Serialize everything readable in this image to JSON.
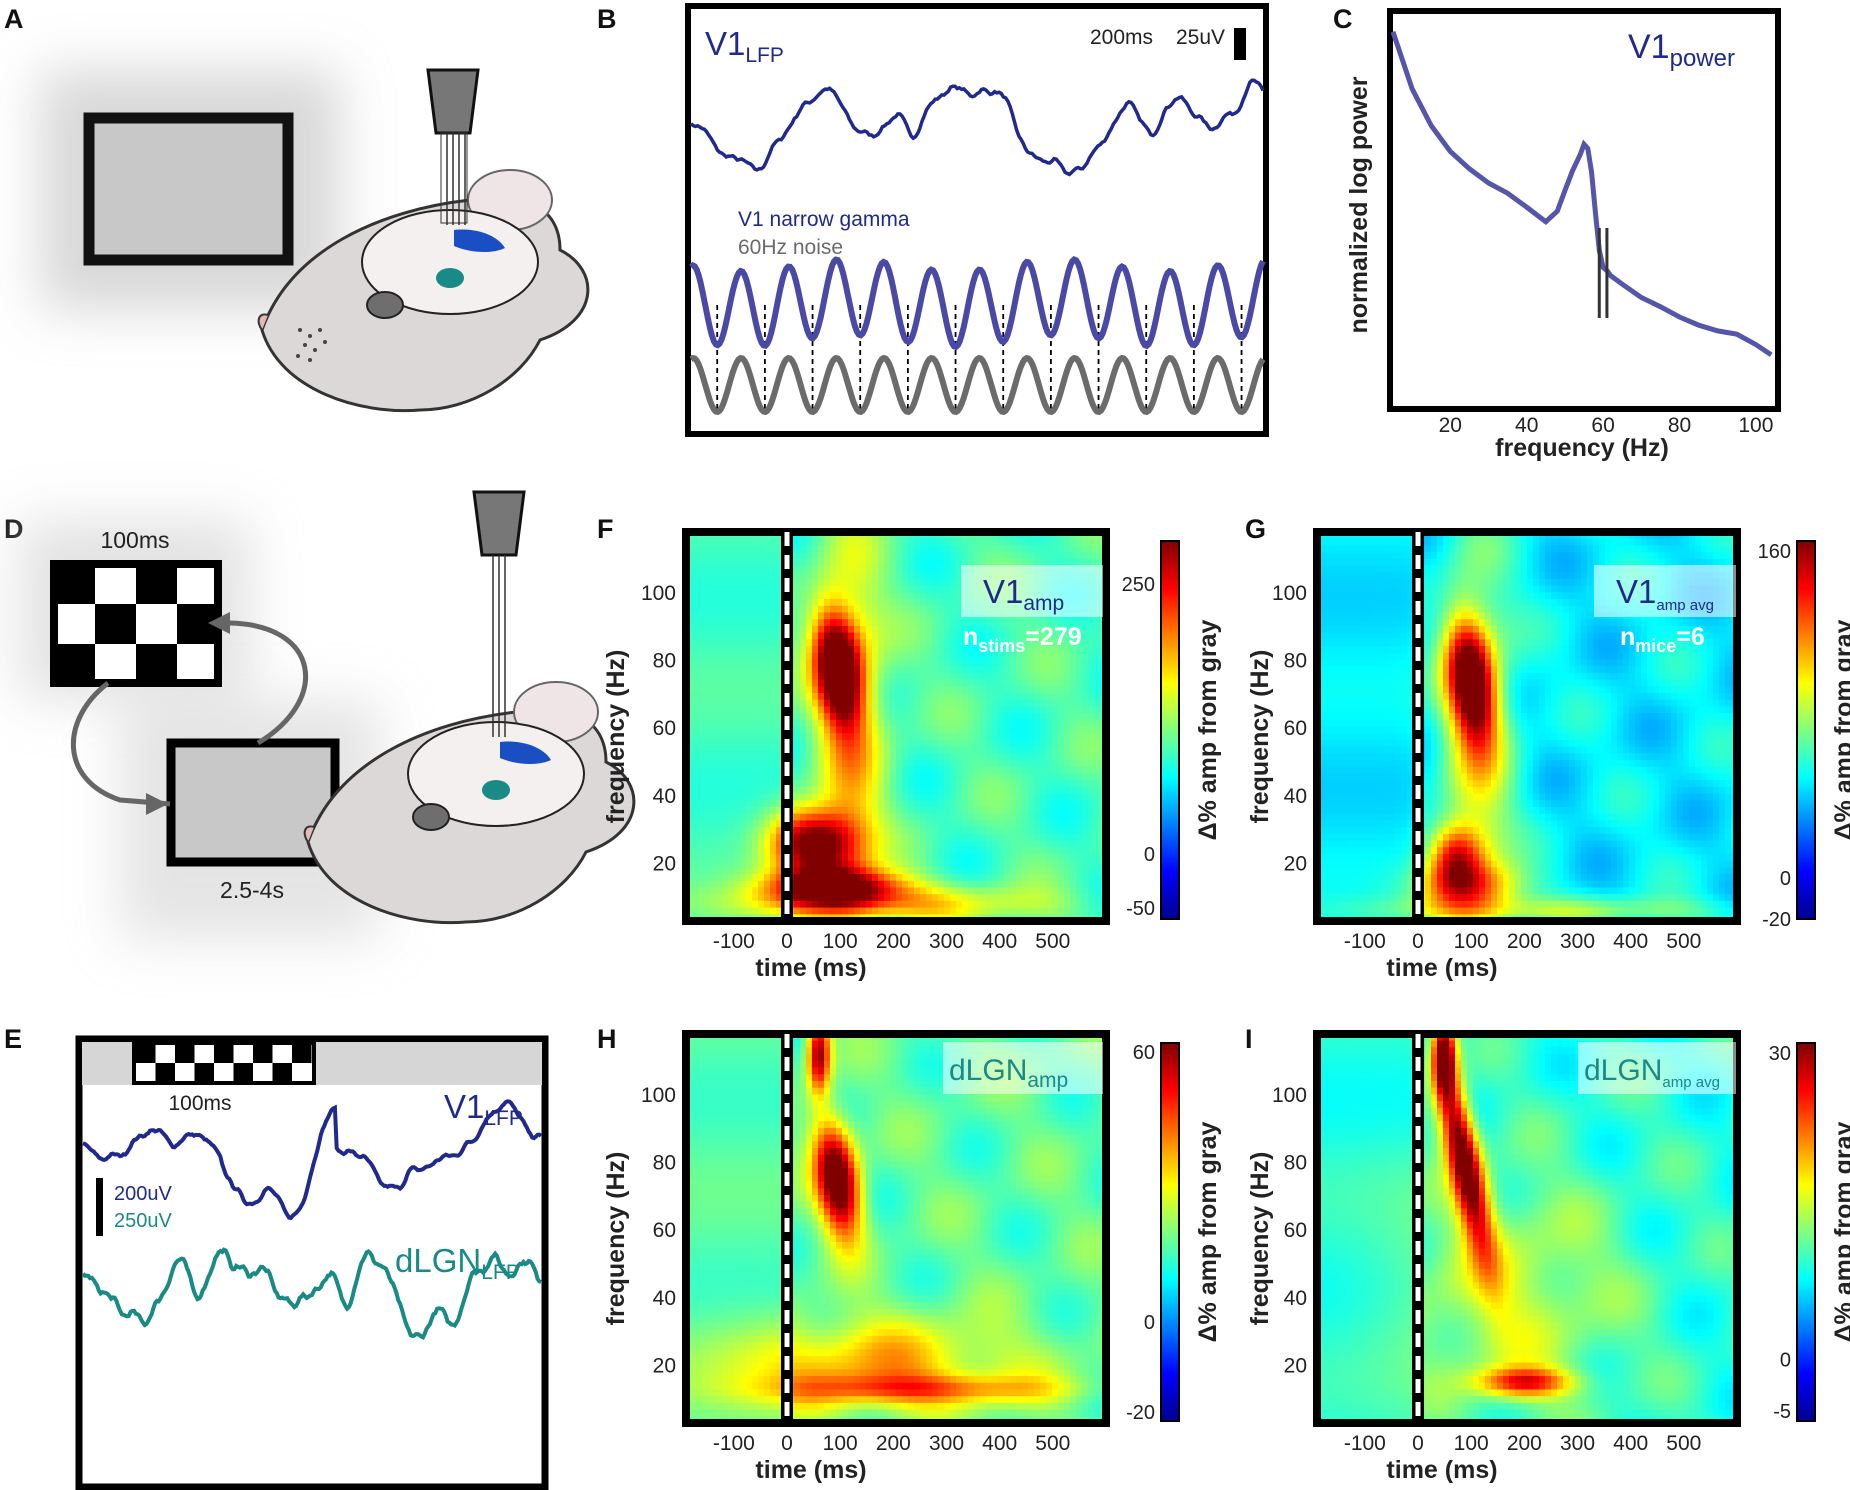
{
  "panels": {
    "A": "A",
    "B": "B",
    "C": "C",
    "D": "D",
    "E": "E",
    "F": "F",
    "G": "G",
    "H": "H",
    "I": "I"
  },
  "panel_b": {
    "title_main": "V1",
    "title_sub": "LFP",
    "scale_time": "200ms",
    "scale_volt": "25uV",
    "legend_gamma": "V1 narrow gamma",
    "legend_noise": "60Hz noise"
  },
  "panel_c": {
    "title_main": "V1",
    "title_sub": "power",
    "xlabel": "frequency (Hz)",
    "ylabel": "normalized log power",
    "xticks": [
      "20",
      "40",
      "60",
      "80",
      "100"
    ]
  },
  "panel_d": {
    "flash_duration": "100ms",
    "gray_duration": "2.5-4s"
  },
  "panel_e": {
    "flash_duration": "100ms",
    "v1_main": "V1",
    "v1_sub": "LFP",
    "dlgn_main": "dLGN",
    "dlgn_sub": "LFP",
    "scale_v1": "200uV",
    "scale_dlgn": "250uV"
  },
  "heatmap_axes": {
    "xlabel": "time (ms)",
    "ylabel": "frequency (Hz)",
    "cbar_label": "Δ% amp from gray",
    "xticks": [
      "-100",
      "0",
      "100",
      "200",
      "300",
      "400",
      "500"
    ],
    "yticks": [
      "20",
      "40",
      "60",
      "80",
      "100"
    ]
  },
  "panel_f": {
    "title_main": "V1",
    "title_sub": "amp",
    "n_main": "n",
    "n_sub": "stims",
    "n_value": "=279",
    "cbar_ticks": [
      "250",
      "0",
      "-50"
    ]
  },
  "panel_g": {
    "title_main": "V1",
    "title_sub": "amp avg",
    "n_main": "n",
    "n_sub": "mice",
    "n_value": "=6",
    "cbar_ticks": [
      "160",
      "0",
      "-20"
    ]
  },
  "panel_h": {
    "title_main": "dLGN",
    "title_sub": "amp",
    "cbar_ticks": [
      "60",
      "0",
      "-20"
    ]
  },
  "panel_i": {
    "title_main": "dLGN",
    "title_sub": "amp avg",
    "cbar_ticks": [
      "30",
      "0",
      "-5"
    ]
  },
  "colors": {
    "navy": "#1f2a8c",
    "gamma": "#4a4aa6",
    "teal": "#1a8a86",
    "noise": "#6b6b6b"
  },
  "chart_data": [
    {
      "type": "line",
      "panel": "B",
      "series": [
        {
          "name": "V1 LFP",
          "shape": "irregular broadband trace"
        },
        {
          "name": "V1 narrow gamma",
          "shape": "oscillation",
          "cycles_shown": 12
        },
        {
          "name": "60Hz noise",
          "shape": "oscillation",
          "cycles_shown": 12
        }
      ]
    },
    {
      "type": "line",
      "panel": "C",
      "title": "V1 power",
      "xlabel": "frequency (Hz)",
      "ylabel": "normalized log power",
      "xlim": [
        5,
        105
      ],
      "x": [
        5,
        10,
        15,
        20,
        25,
        30,
        35,
        40,
        45,
        48,
        50,
        52,
        54,
        55,
        56,
        57,
        58,
        59,
        60,
        61,
        62,
        65,
        70,
        75,
        80,
        85,
        90,
        95,
        100,
        104
      ],
      "y": [
        1.0,
        0.83,
        0.72,
        0.64,
        0.59,
        0.55,
        0.52,
        0.48,
        0.44,
        0.47,
        0.53,
        0.59,
        0.64,
        0.67,
        0.66,
        0.58,
        0.46,
        0.36,
        0.31,
        0.29,
        0.27,
        0.25,
        0.22,
        0.19,
        0.16,
        0.14,
        0.12,
        0.1,
        0.07,
        0.05
      ],
      "markers_x": [
        59,
        61
      ]
    },
    {
      "type": "heatmap",
      "panel": "F",
      "title": "V1 amp",
      "xlim": [
        -190,
        600
      ],
      "ylim": [
        3,
        118
      ],
      "clim": [
        -60,
        290
      ],
      "blobs": [
        {
          "t": 95,
          "f": 78,
          "st": 30,
          "sf": 12,
          "a": 1.0,
          "tilt": -0.25
        },
        {
          "t": 50,
          "f": 26,
          "st": 55,
          "sf": 7,
          "a": 0.95,
          "tilt": 0
        },
        {
          "t": 90,
          "f": 13,
          "st": 85,
          "sf": 4,
          "a": 0.8,
          "tilt": 0
        },
        {
          "t": 120,
          "f": 60,
          "st": 45,
          "sf": 40,
          "a": 0.35,
          "tilt": 0
        },
        {
          "t": 180,
          "f": 8,
          "st": 200,
          "sf": 4,
          "a": 0.35,
          "tilt": 0
        }
      ],
      "base": 0.25
    },
    {
      "type": "heatmap",
      "panel": "G",
      "title": "V1 amp avg",
      "xlim": [
        -190,
        600
      ],
      "ylim": [
        3,
        118
      ],
      "clim": [
        -20,
        165
      ],
      "blobs": [
        {
          "t": 100,
          "f": 74,
          "st": 30,
          "sf": 13,
          "a": 1.0,
          "tilt": -0.25
        },
        {
          "t": 70,
          "f": 22,
          "st": 35,
          "sf": 7,
          "a": 0.65,
          "tilt": 0
        },
        {
          "t": 100,
          "f": 13,
          "st": 70,
          "sf": 5,
          "a": 0.45,
          "tilt": 0
        },
        {
          "t": 110,
          "f": 50,
          "st": 50,
          "sf": 45,
          "a": 0.35,
          "tilt": 0
        },
        {
          "t": 250,
          "f": 6,
          "st": 250,
          "sf": 3,
          "a": 0.25,
          "tilt": 0
        }
      ],
      "base": 0.12
    },
    {
      "type": "heatmap",
      "panel": "H",
      "title": "dLGN amp",
      "xlim": [
        -190,
        600
      ],
      "ylim": [
        3,
        118
      ],
      "clim": [
        -22,
        62
      ],
      "blobs": [
        {
          "t": 95,
          "f": 75,
          "st": 28,
          "sf": 12,
          "a": 1.0,
          "tilt": -0.3
        },
        {
          "t": 60,
          "f": 112,
          "st": 15,
          "sf": 8,
          "a": 0.8,
          "tilt": 0
        },
        {
          "t": 150,
          "f": 20,
          "st": 200,
          "sf": 10,
          "a": 0.35,
          "tilt": 0
        },
        {
          "t": 250,
          "f": 13,
          "st": 180,
          "sf": 3,
          "a": 0.35,
          "tilt": 0
        }
      ],
      "base": 0.28
    },
    {
      "type": "heatmap",
      "panel": "I",
      "title": "dLGN amp avg",
      "xlim": [
        -190,
        600
      ],
      "ylim": [
        3,
        118
      ],
      "clim": [
        -6,
        31
      ],
      "blobs": [
        {
          "t": 85,
          "f": 82,
          "st": 22,
          "sf": 20,
          "a": 1.0,
          "tilt": -0.45
        },
        {
          "t": 50,
          "f": 112,
          "st": 15,
          "sf": 8,
          "a": 0.85,
          "tilt": 0
        },
        {
          "t": 200,
          "f": 15,
          "st": 60,
          "sf": 3,
          "a": 0.6,
          "tilt": 0
        },
        {
          "t": 170,
          "f": 40,
          "st": 150,
          "sf": 25,
          "a": 0.25,
          "tilt": 0
        }
      ],
      "base": 0.2
    }
  ]
}
